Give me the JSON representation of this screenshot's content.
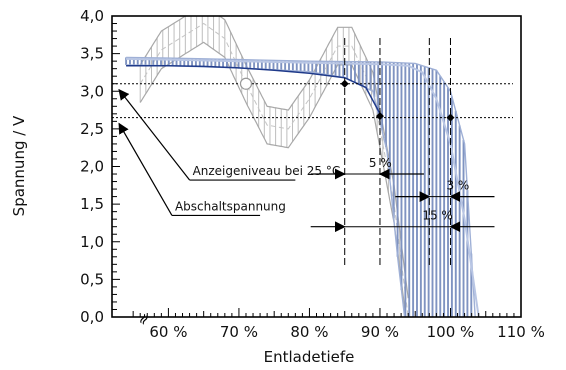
{
  "chart_data": {
    "type": "line",
    "title": "",
    "xlabel": "Entladetiefe",
    "ylabel": "Spannung / V",
    "xlim": [
      52,
      110
    ],
    "ylim": [
      0,
      4
    ],
    "x_ticks": [
      60,
      70,
      80,
      90,
      100,
      110
    ],
    "x_tick_labels": [
      "60 %",
      "70 %",
      "80 %",
      "90 %",
      "100 %",
      "110 %"
    ],
    "y_ticks": [
      0,
      0.5,
      1,
      1.5,
      2,
      2.5,
      3,
      3.5,
      4
    ],
    "y_tick_labels": [
      "0,0",
      "0,5",
      "1,0",
      "1,5",
      "2,0",
      "2,5",
      "3,0",
      "3,5",
      "4,0"
    ],
    "axis_break_symbol": "≈",
    "grid": false,
    "reference_lines": {
      "display_level_v": 3.1,
      "cutoff_voltage_v": 2.65,
      "vertical_x": [
        85,
        90,
        97,
        100
      ]
    },
    "series": [
      {
        "role": "curve",
        "points": [
          [
            54,
            3.34
          ],
          [
            60,
            3.34
          ],
          [
            65,
            3.33
          ],
          [
            70,
            3.31
          ],
          [
            75,
            3.28
          ],
          [
            80,
            3.24
          ],
          [
            85,
            3.18
          ],
          [
            88,
            3.05
          ],
          [
            90,
            2.7
          ]
        ]
      },
      {
        "role": "curve",
        "points": [
          [
            54,
            3.43
          ],
          [
            60,
            3.42
          ],
          [
            70,
            3.4
          ],
          [
            80,
            3.38
          ],
          [
            90,
            3.36
          ],
          [
            94,
            3.34
          ],
          [
            96,
            3.25
          ],
          [
            98,
            2.9
          ],
          [
            100,
            2.3
          ],
          [
            102,
            1.3
          ],
          [
            104,
            0
          ]
        ]
      }
    ],
    "scatter_band": {
      "upper": [
        [
          54,
          3.45
        ],
        [
          60,
          3.44
        ],
        [
          70,
          3.42
        ],
        [
          80,
          3.4
        ],
        [
          90,
          3.39
        ],
        [
          95,
          3.37
        ],
        [
          98,
          3.28
        ],
        [
          100,
          3.0
        ],
        [
          102,
          2.3
        ],
        [
          103.5,
          0
        ]
      ],
      "lower": [
        [
          54,
          3.35
        ],
        [
          60,
          3.34
        ],
        [
          70,
          3.31
        ],
        [
          80,
          3.26
        ],
        [
          85,
          3.18
        ],
        [
          89,
          3.0
        ],
        [
          91,
          2.2
        ],
        [
          92.5,
          0.8
        ],
        [
          93.5,
          0
        ]
      ]
    },
    "oscillation": {
      "center": [
        [
          56,
          3.1
        ],
        [
          59,
          3.55
        ],
        [
          65,
          3.9
        ],
        [
          68,
          3.7
        ],
        [
          71,
          3.1
        ],
        [
          74,
          2.55
        ],
        [
          77,
          2.5
        ],
        [
          80,
          2.9
        ],
        [
          84,
          3.6
        ],
        [
          86,
          3.6
        ],
        [
          89,
          3.0
        ],
        [
          92,
          1.5
        ],
        [
          94,
          0
        ]
      ],
      "amplitude_v": 0.25
    },
    "markers": [
      {
        "x": 85,
        "y": 3.1,
        "style": "filled"
      },
      {
        "x": 90,
        "y": 2.67,
        "style": "filled"
      },
      {
        "x": 100,
        "y": 2.65,
        "style": "filled"
      },
      {
        "x": 71,
        "y": 3.1,
        "style": "open"
      }
    ],
    "spread_arrows": [
      {
        "label": "5 %",
        "y": 1.9,
        "x1": 85,
        "x2": 90
      },
      {
        "label": "3 %",
        "y": 1.6,
        "x1": 97,
        "x2": 100
      },
      {
        "label": "15 %",
        "y": 1.2,
        "x1": 85,
        "x2": 100
      }
    ],
    "annotations": [
      {
        "label": "Anzeigeniveau bei 25 °C",
        "text_x": 63,
        "text_y": 1.82,
        "line_end_x": 78,
        "arrow_to": [
          53,
          3.1
        ]
      },
      {
        "label": "Abschaltspannung",
        "text_x": 60.5,
        "text_y": 1.35,
        "line_end_x": 73,
        "arrow_to": [
          53,
          2.65
        ]
      }
    ]
  }
}
